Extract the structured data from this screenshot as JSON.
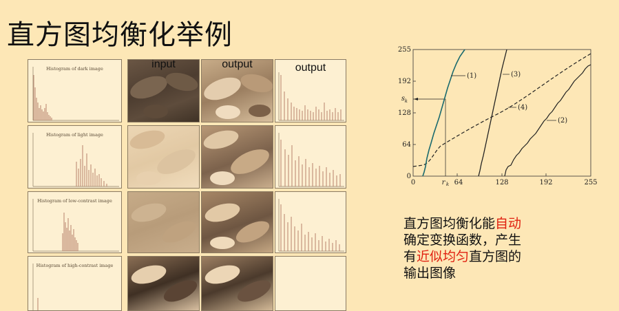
{
  "slide": {
    "title": "直方图均衡化举例"
  },
  "figure": {
    "col_headers": [
      "input",
      "output",
      "output"
    ],
    "hist_titles": [
      "Histogram of dark image",
      "Histogram of light image",
      "Histogram of low-contrast image",
      "Histogram of high-contrast image"
    ]
  },
  "graph": {
    "y_ticks": [
      "255",
      "192",
      "128",
      "64",
      "0"
    ],
    "x_ticks": [
      "0",
      "64",
      "128",
      "192",
      "255"
    ],
    "sk_label": "s",
    "sk_sub": "k",
    "rk_label": "r",
    "rk_sub": "k",
    "curve_labels": [
      "(1)",
      "(2)",
      "(3)",
      "(4)"
    ]
  },
  "description": {
    "line1_a": "直方图均衡化能",
    "line1_hl": "自动",
    "line2": "确定变换函数，产生",
    "line3_a": "有",
    "line3_hl": "近似均匀",
    "line3_b": "直方图的",
    "line4": "输出图像"
  },
  "colors": {
    "background": "#fde7b6",
    "highlight": "#e02010",
    "curve1": "#1a6a6e"
  }
}
